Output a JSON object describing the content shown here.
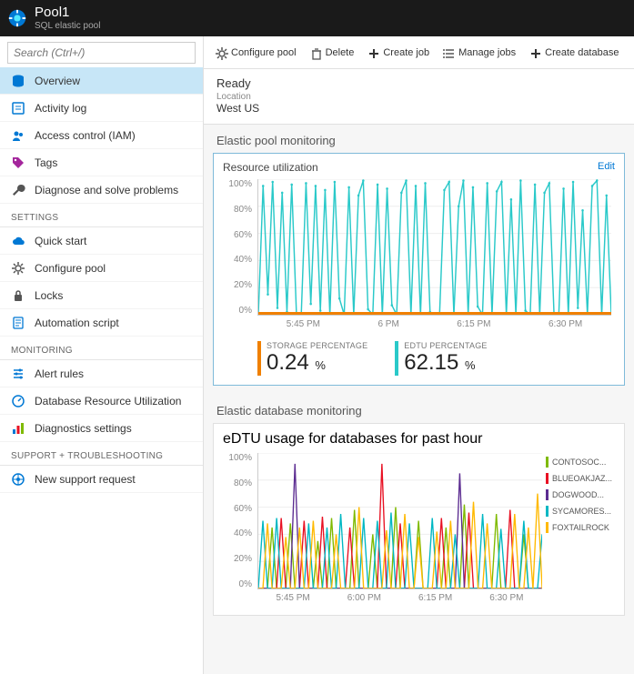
{
  "header": {
    "title": "Pool1",
    "subtitle": "SQL elastic pool"
  },
  "search": {
    "placeholder": "Search (Ctrl+/)"
  },
  "nav": {
    "core": [
      {
        "key": "overview",
        "label": "Overview",
        "icon": "db",
        "selected": true
      },
      {
        "key": "activity",
        "label": "Activity log",
        "icon": "log"
      },
      {
        "key": "iam",
        "label": "Access control (IAM)",
        "icon": "people"
      },
      {
        "key": "tags",
        "label": "Tags",
        "icon": "tag"
      },
      {
        "key": "diag",
        "label": "Diagnose and solve problems",
        "icon": "wrench"
      }
    ],
    "sections": [
      {
        "title": "SETTINGS",
        "items": [
          {
            "key": "quick",
            "label": "Quick start",
            "icon": "cloud"
          },
          {
            "key": "conf",
            "label": "Configure pool",
            "icon": "gear"
          },
          {
            "key": "locks",
            "label": "Locks",
            "icon": "lock"
          },
          {
            "key": "auto",
            "label": "Automation script",
            "icon": "script"
          }
        ]
      },
      {
        "title": "MONITORING",
        "items": [
          {
            "key": "alert",
            "label": "Alert rules",
            "icon": "rules"
          },
          {
            "key": "dbres",
            "label": "Database Resource Utilization",
            "icon": "gauge"
          },
          {
            "key": "diagset",
            "label": "Diagnostics settings",
            "icon": "bars"
          }
        ]
      },
      {
        "title": "SUPPORT + TROUBLESHOOTING",
        "items": [
          {
            "key": "support",
            "label": "New support request",
            "icon": "support"
          }
        ]
      }
    ]
  },
  "toolbar": [
    {
      "key": "conf",
      "label": "Configure pool",
      "icon": "gear"
    },
    {
      "key": "del",
      "label": "Delete",
      "icon": "trash"
    },
    {
      "key": "create",
      "label": "Create job",
      "icon": "plus"
    },
    {
      "key": "manage",
      "label": "Manage jobs",
      "icon": "list"
    },
    {
      "key": "createdb",
      "label": "Create database",
      "icon": "plus"
    }
  ],
  "info": {
    "status": "Ready",
    "loc_label": "Location",
    "loc_value": "West US"
  },
  "panel1": {
    "outer_title": "Elastic pool monitoring",
    "title": "Resource utilization",
    "edit": "Edit",
    "chart": {
      "type": "line",
      "y_ticks": [
        "100%",
        "80%",
        "60%",
        "40%",
        "20%",
        "0%"
      ],
      "x_ticks": [
        "5:45 PM",
        "6 PM",
        "6:15 PM",
        "6:30 PM"
      ],
      "ylim": [
        0,
        100
      ],
      "line_color": "#2ac9c9",
      "baseline_color": "#f08000",
      "grid_color": "#eeeeee",
      "values": [
        0,
        95,
        15,
        98,
        5,
        90,
        2,
        96,
        0,
        0,
        97,
        8,
        95,
        3,
        92,
        0,
        98,
        12,
        0,
        94,
        0,
        88,
        99,
        4,
        0,
        96,
        0,
        93,
        7,
        0,
        90,
        99,
        0,
        95,
        0,
        97,
        2,
        0,
        0,
        92,
        98,
        0,
        80,
        99,
        0,
        94,
        6,
        0,
        97,
        0,
        91,
        98,
        0,
        85,
        0,
        99,
        3,
        0,
        96,
        0,
        90,
        97,
        0,
        0,
        93,
        0,
        98,
        5,
        77,
        0,
        95,
        99,
        0,
        88,
        0
      ]
    },
    "metrics": [
      {
        "label": "STORAGE PERCENTAGE",
        "value": "0.24",
        "suffix": "%",
        "color": "#f08000"
      },
      {
        "label": "EDTU PERCENTAGE",
        "value": "62.15",
        "suffix": "%",
        "color": "#2ac9c9"
      }
    ]
  },
  "panel2": {
    "outer_title": "Elastic database monitoring",
    "title": "eDTU usage for databases for past hour",
    "chart": {
      "type": "line-multi",
      "y_ticks": [
        "100%",
        "80%",
        "60%",
        "40%",
        "20%",
        "0%"
      ],
      "x_ticks": [
        "5:45 PM",
        "6:00 PM",
        "6:15 PM",
        "6:30 PM"
      ],
      "ylim": [
        0,
        100
      ],
      "grid_color": "#eeeeee",
      "legend": [
        {
          "name": "CONTOSOC...",
          "color": "#7fba00"
        },
        {
          "name": "BLUEOAKJAZ...",
          "color": "#e81123"
        },
        {
          "name": "DOGWOOD...",
          "color": "#5c2d91"
        },
        {
          "name": "SYCAMORES...",
          "color": "#00b7c3"
        },
        {
          "name": "FOXTAILROCK",
          "color": "#ffb900"
        }
      ],
      "series": [
        {
          "color": "#7fba00",
          "values": [
            0,
            0,
            0,
            45,
            0,
            0,
            0,
            48,
            0,
            0,
            0,
            0,
            0,
            35,
            0,
            0,
            52,
            0,
            0,
            0,
            0,
            58,
            0,
            0,
            0,
            40,
            0,
            0,
            0,
            0,
            60,
            0,
            0,
            0,
            0,
            50,
            0,
            0,
            0,
            0,
            0,
            45,
            0,
            0,
            0,
            62,
            0,
            0,
            0,
            0,
            0,
            0,
            55,
            0,
            0,
            0,
            0,
            0,
            40,
            0,
            0,
            0,
            0
          ]
        },
        {
          "color": "#e81123",
          "values": [
            0,
            0,
            0,
            0,
            0,
            52,
            0,
            0,
            0,
            0,
            50,
            0,
            0,
            0,
            53,
            0,
            0,
            0,
            0,
            0,
            45,
            0,
            0,
            0,
            0,
            0,
            0,
            92,
            0,
            0,
            0,
            48,
            0,
            0,
            0,
            0,
            0,
            0,
            0,
            0,
            52,
            0,
            0,
            0,
            0,
            0,
            56,
            0,
            0,
            0,
            0,
            0,
            0,
            0,
            0,
            58,
            0,
            0,
            0,
            0,
            0,
            0,
            0
          ]
        },
        {
          "color": "#5c2d91",
          "values": [
            0,
            0,
            0,
            0,
            0,
            0,
            0,
            0,
            92,
            0,
            0,
            0,
            0,
            0,
            0,
            0,
            0,
            0,
            0,
            0,
            0,
            0,
            0,
            0,
            0,
            0,
            0,
            0,
            0,
            0,
            0,
            0,
            0,
            0,
            0,
            0,
            0,
            0,
            0,
            0,
            0,
            0,
            0,
            0,
            85,
            0,
            0,
            0,
            0,
            0,
            0,
            0,
            0,
            0,
            0,
            0,
            0,
            0,
            0,
            0,
            0,
            0,
            0
          ]
        },
        {
          "color": "#00b7c3",
          "values": [
            0,
            50,
            0,
            0,
            52,
            0,
            0,
            0,
            0,
            0,
            0,
            48,
            0,
            0,
            0,
            45,
            0,
            0,
            55,
            0,
            0,
            0,
            0,
            52,
            0,
            0,
            50,
            0,
            0,
            56,
            0,
            0,
            0,
            48,
            0,
            0,
            0,
            0,
            52,
            0,
            0,
            0,
            0,
            40,
            0,
            0,
            0,
            0,
            0,
            55,
            0,
            0,
            0,
            44,
            0,
            0,
            0,
            0,
            50,
            0,
            0,
            0,
            40
          ]
        },
        {
          "color": "#ffb900",
          "values": [
            0,
            0,
            48,
            0,
            0,
            0,
            38,
            0,
            0,
            45,
            0,
            0,
            50,
            0,
            0,
            0,
            0,
            40,
            0,
            0,
            0,
            0,
            60,
            0,
            0,
            0,
            0,
            0,
            43,
            0,
            0,
            0,
            55,
            0,
            0,
            38,
            0,
            0,
            0,
            42,
            0,
            0,
            50,
            0,
            0,
            0,
            0,
            64,
            0,
            0,
            48,
            0,
            0,
            0,
            0,
            0,
            55,
            0,
            0,
            45,
            0,
            70,
            0
          ]
        }
      ]
    }
  }
}
